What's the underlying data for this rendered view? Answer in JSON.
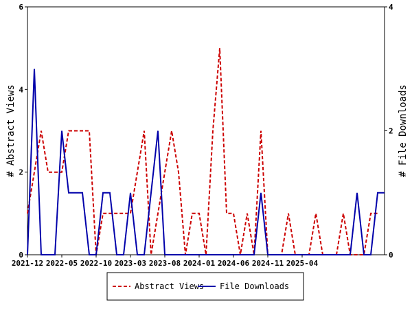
{
  "chart_data": {
    "type": "line",
    "x_tick_labels": [
      "2021-12",
      "2022-05",
      "2022-10",
      "2023-03",
      "2023-08",
      "2024-01",
      "2024-06",
      "2024-11",
      "2025-04"
    ],
    "y_left": {
      "label": "# Abstract Views",
      "ylim": [
        0,
        6
      ],
      "ticks": [
        0,
        2,
        4,
        6
      ]
    },
    "y_right": {
      "label": "# File Downloads",
      "ylim": [
        0,
        4
      ],
      "ticks": [
        0,
        2,
        4
      ]
    },
    "legend_position": "bottom",
    "grid": false,
    "series": [
      {
        "name": "Abstract Views",
        "axis": "left",
        "color": "#cc0000",
        "dash": "dashed",
        "values": [
          1,
          2,
          3,
          2,
          2,
          2,
          3,
          3,
          3,
          3,
          0,
          1,
          1,
          1,
          1,
          1,
          2,
          3,
          0,
          1,
          2,
          3,
          2,
          0,
          1,
          1,
          0,
          3,
          5,
          1,
          1,
          0,
          1,
          0,
          3,
          0,
          0,
          0,
          1,
          0,
          0,
          0,
          1,
          0,
          0,
          0,
          1,
          0,
          0,
          0,
          1,
          1
        ]
      },
      {
        "name": "File Downloads",
        "axis": "right",
        "color": "#0000aa",
        "dash": "solid",
        "values": [
          0,
          3,
          0,
          0,
          0,
          2,
          1,
          1,
          1,
          0,
          0,
          1,
          1,
          0,
          0,
          1,
          0,
          0,
          1,
          2,
          0,
          0,
          0,
          0,
          0,
          0,
          0,
          0,
          0,
          0,
          0,
          0,
          0,
          0,
          1,
          0,
          0,
          0,
          0,
          0,
          0,
          0,
          0,
          0,
          0,
          0,
          0,
          0,
          1,
          0,
          0,
          1,
          1
        ]
      }
    ]
  }
}
